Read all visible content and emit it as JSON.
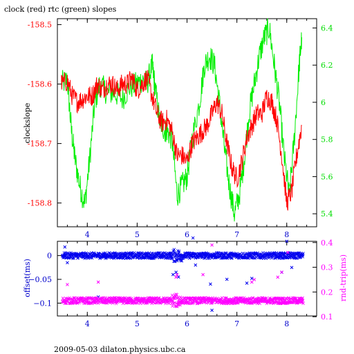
{
  "footer": "2009-05-03  dilaton.physics.ubc.ca",
  "chart_data": [
    {
      "type": "line",
      "title": "clock (red) rtc (green) slopes",
      "ylabel": "clockslope",
      "xlim": [
        3.4,
        8.6
      ],
      "xticks": [
        4,
        5,
        6,
        7,
        8
      ],
      "left_axis": {
        "color": "#ff0000",
        "ylim": [
          -158.84,
          -158.49
        ],
        "ticks": [
          -158.5,
          -158.6,
          -158.7,
          -158.8
        ]
      },
      "right_axis": {
        "color": "#00dd00",
        "ylim": [
          5.33,
          6.45
        ],
        "ticks": [
          6.4,
          6.2,
          6.0,
          5.8,
          5.6,
          5.4
        ]
      },
      "series": [
        {
          "axis": "right",
          "color": "#00ee00",
          "x": [
            3.48,
            3.6,
            3.68,
            3.75,
            3.85,
            3.95,
            4.05,
            4.15,
            4.25,
            4.4,
            4.55,
            4.7,
            4.85,
            5.0,
            5.1,
            5.2,
            5.3,
            5.35,
            5.45,
            5.55,
            5.6,
            5.7,
            5.8,
            5.9,
            6.0,
            6.1,
            6.25,
            6.35,
            6.45,
            6.55,
            6.65,
            6.75,
            6.85,
            6.95,
            7.05,
            7.15,
            7.25,
            7.35,
            7.45,
            7.55,
            7.65,
            7.75,
            7.85,
            7.95,
            8.05,
            8.15,
            8.25,
            8.3
          ],
          "values": [
            6.1,
            6.12,
            5.85,
            5.7,
            5.55,
            5.45,
            5.7,
            6.0,
            6.1,
            6.05,
            6.05,
            6.02,
            6.08,
            6.1,
            6.12,
            6.1,
            6.2,
            6.1,
            5.9,
            5.85,
            5.85,
            5.8,
            5.5,
            5.55,
            5.6,
            5.8,
            6.0,
            6.2,
            6.25,
            6.2,
            6.0,
            5.75,
            5.55,
            5.4,
            5.5,
            5.7,
            5.95,
            6.1,
            6.25,
            6.35,
            6.4,
            6.2,
            6.0,
            5.7,
            5.5,
            5.8,
            6.2,
            6.35
          ]
        },
        {
          "axis": "left",
          "color": "#ff0000",
          "x": [
            3.48,
            3.6,
            3.7,
            3.8,
            3.9,
            4.0,
            4.1,
            4.2,
            4.3,
            4.4,
            4.5,
            4.6,
            4.7,
            4.8,
            4.9,
            5.0,
            5.1,
            5.2,
            5.3,
            5.4,
            5.5,
            5.6,
            5.7,
            5.8,
            5.9,
            6.0,
            6.1,
            6.2,
            6.3,
            6.4,
            6.5,
            6.6,
            6.7,
            6.8,
            6.9,
            7.0,
            7.1,
            7.2,
            7.3,
            7.4,
            7.5,
            7.6,
            7.7,
            7.8,
            7.9,
            8.0,
            8.1,
            8.2,
            8.3
          ],
          "values": [
            -158.6,
            -158.595,
            -158.62,
            -158.63,
            -158.625,
            -158.62,
            -158.62,
            -158.6,
            -158.61,
            -158.6,
            -158.6,
            -158.61,
            -158.6,
            -158.6,
            -158.59,
            -158.61,
            -158.6,
            -158.59,
            -158.62,
            -158.65,
            -158.665,
            -158.66,
            -158.68,
            -158.72,
            -158.72,
            -158.73,
            -158.7,
            -158.69,
            -158.68,
            -158.67,
            -158.65,
            -158.63,
            -158.65,
            -158.7,
            -158.74,
            -158.76,
            -158.73,
            -158.69,
            -158.67,
            -158.65,
            -158.65,
            -158.62,
            -158.63,
            -158.66,
            -158.72,
            -158.8,
            -158.78,
            -158.72,
            -158.67
          ]
        }
      ]
    },
    {
      "type": "scatter",
      "ylabel": "offset(ms)",
      "right_ylabel": "rnd-trip(ms)",
      "xlim": [
        3.4,
        8.6
      ],
      "xticks": [
        4,
        5,
        6,
        7,
        8
      ],
      "left_axis": {
        "color": "#0000cc",
        "ylim": [
          -0.127,
          0.03
        ],
        "ticks": [
          0,
          -0.05,
          -0.1
        ],
        "tick_labels": [
          "0",
          "−0.05",
          "−0.1"
        ]
      },
      "right_axis": {
        "color": "#ff00ff",
        "ylim": [
          0.103,
          0.405
        ],
        "ticks": [
          0.4,
          0.3,
          0.2,
          0.1
        ]
      },
      "series": [
        {
          "name": "offset",
          "axis": "left",
          "color": "#0000ee",
          "marker": "x",
          "x_range": [
            3.5,
            8.33
          ],
          "typical": 0.0,
          "spread": 0.006,
          "outliers": [
            [
              3.55,
              0.018
            ],
            [
              3.6,
              -0.015
            ],
            [
              4.22,
              -0.087
            ],
            [
              5.72,
              -0.04
            ],
            [
              5.78,
              -0.035
            ],
            [
              5.83,
              -0.045
            ],
            [
              6.12,
              0.037
            ],
            [
              6.17,
              -0.02
            ],
            [
              6.47,
              -0.06
            ],
            [
              6.5,
              -0.115
            ],
            [
              6.8,
              -0.05
            ],
            [
              7.2,
              -0.058
            ],
            [
              7.3,
              -0.048
            ],
            [
              7.9,
              -0.035
            ],
            [
              8.0,
              0.03
            ],
            [
              8.1,
              -0.025
            ]
          ]
        },
        {
          "name": "rnd-trip",
          "axis": "right",
          "color": "#ff00ff",
          "marker": "x",
          "x_range": [
            3.5,
            8.33
          ],
          "typical": 0.165,
          "spread": 0.012,
          "outliers": [
            [
              3.6,
              0.23
            ],
            [
              4.22,
              0.24
            ],
            [
              5.78,
              0.26
            ],
            [
              5.8,
              0.27
            ],
            [
              6.32,
              0.27
            ],
            [
              6.5,
              0.39
            ],
            [
              7.3,
              0.24
            ],
            [
              7.35,
              0.25
            ],
            [
              7.82,
              0.26
            ],
            [
              7.9,
              0.28
            ],
            [
              8.02,
              0.36
            ]
          ]
        }
      ]
    }
  ]
}
